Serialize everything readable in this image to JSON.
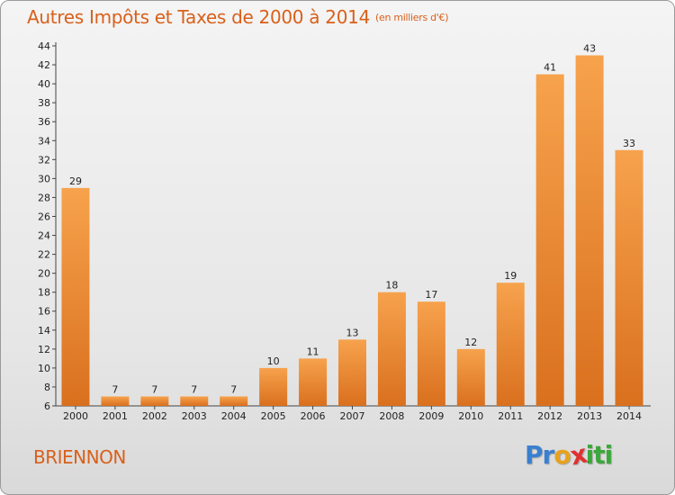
{
  "title": "Autres Impôts et Taxes de 2000 à 2014",
  "title_unit": "(en milliers d'€)",
  "commune": "BRIENNON",
  "logo": {
    "text": "Proxiti",
    "letters": [
      {
        "char": "P",
        "color": "#3a7fd0"
      },
      {
        "char": "r",
        "color": "#3a7fd0"
      },
      {
        "char": "o",
        "color": "#e8a21c"
      },
      {
        "char": "x",
        "color": "#e03030"
      },
      {
        "char": "i",
        "color": "#3aa83a"
      },
      {
        "char": "t",
        "color": "#3aa83a"
      },
      {
        "char": "i",
        "color": "#3aa83a"
      }
    ]
  },
  "colors": {
    "bar_light": "#f7a24d",
    "bar_dark": "#d9701e",
    "text_accent": "#d9601a"
  },
  "chart_data": {
    "type": "bar",
    "categories": [
      "2000",
      "2001",
      "2002",
      "2003",
      "2004",
      "2005",
      "2006",
      "2007",
      "2008",
      "2009",
      "2010",
      "2011",
      "2012",
      "2013",
      "2014"
    ],
    "values": [
      29,
      7,
      7,
      7,
      7,
      10,
      11,
      13,
      18,
      17,
      12,
      19,
      41,
      43,
      33
    ],
    "ylim": [
      6,
      44
    ],
    "yticks": [
      6,
      8,
      10,
      12,
      14,
      16,
      18,
      20,
      22,
      24,
      26,
      28,
      30,
      32,
      34,
      36,
      38,
      40,
      42,
      44
    ],
    "grid": false,
    "xlabel": "",
    "ylabel": ""
  }
}
